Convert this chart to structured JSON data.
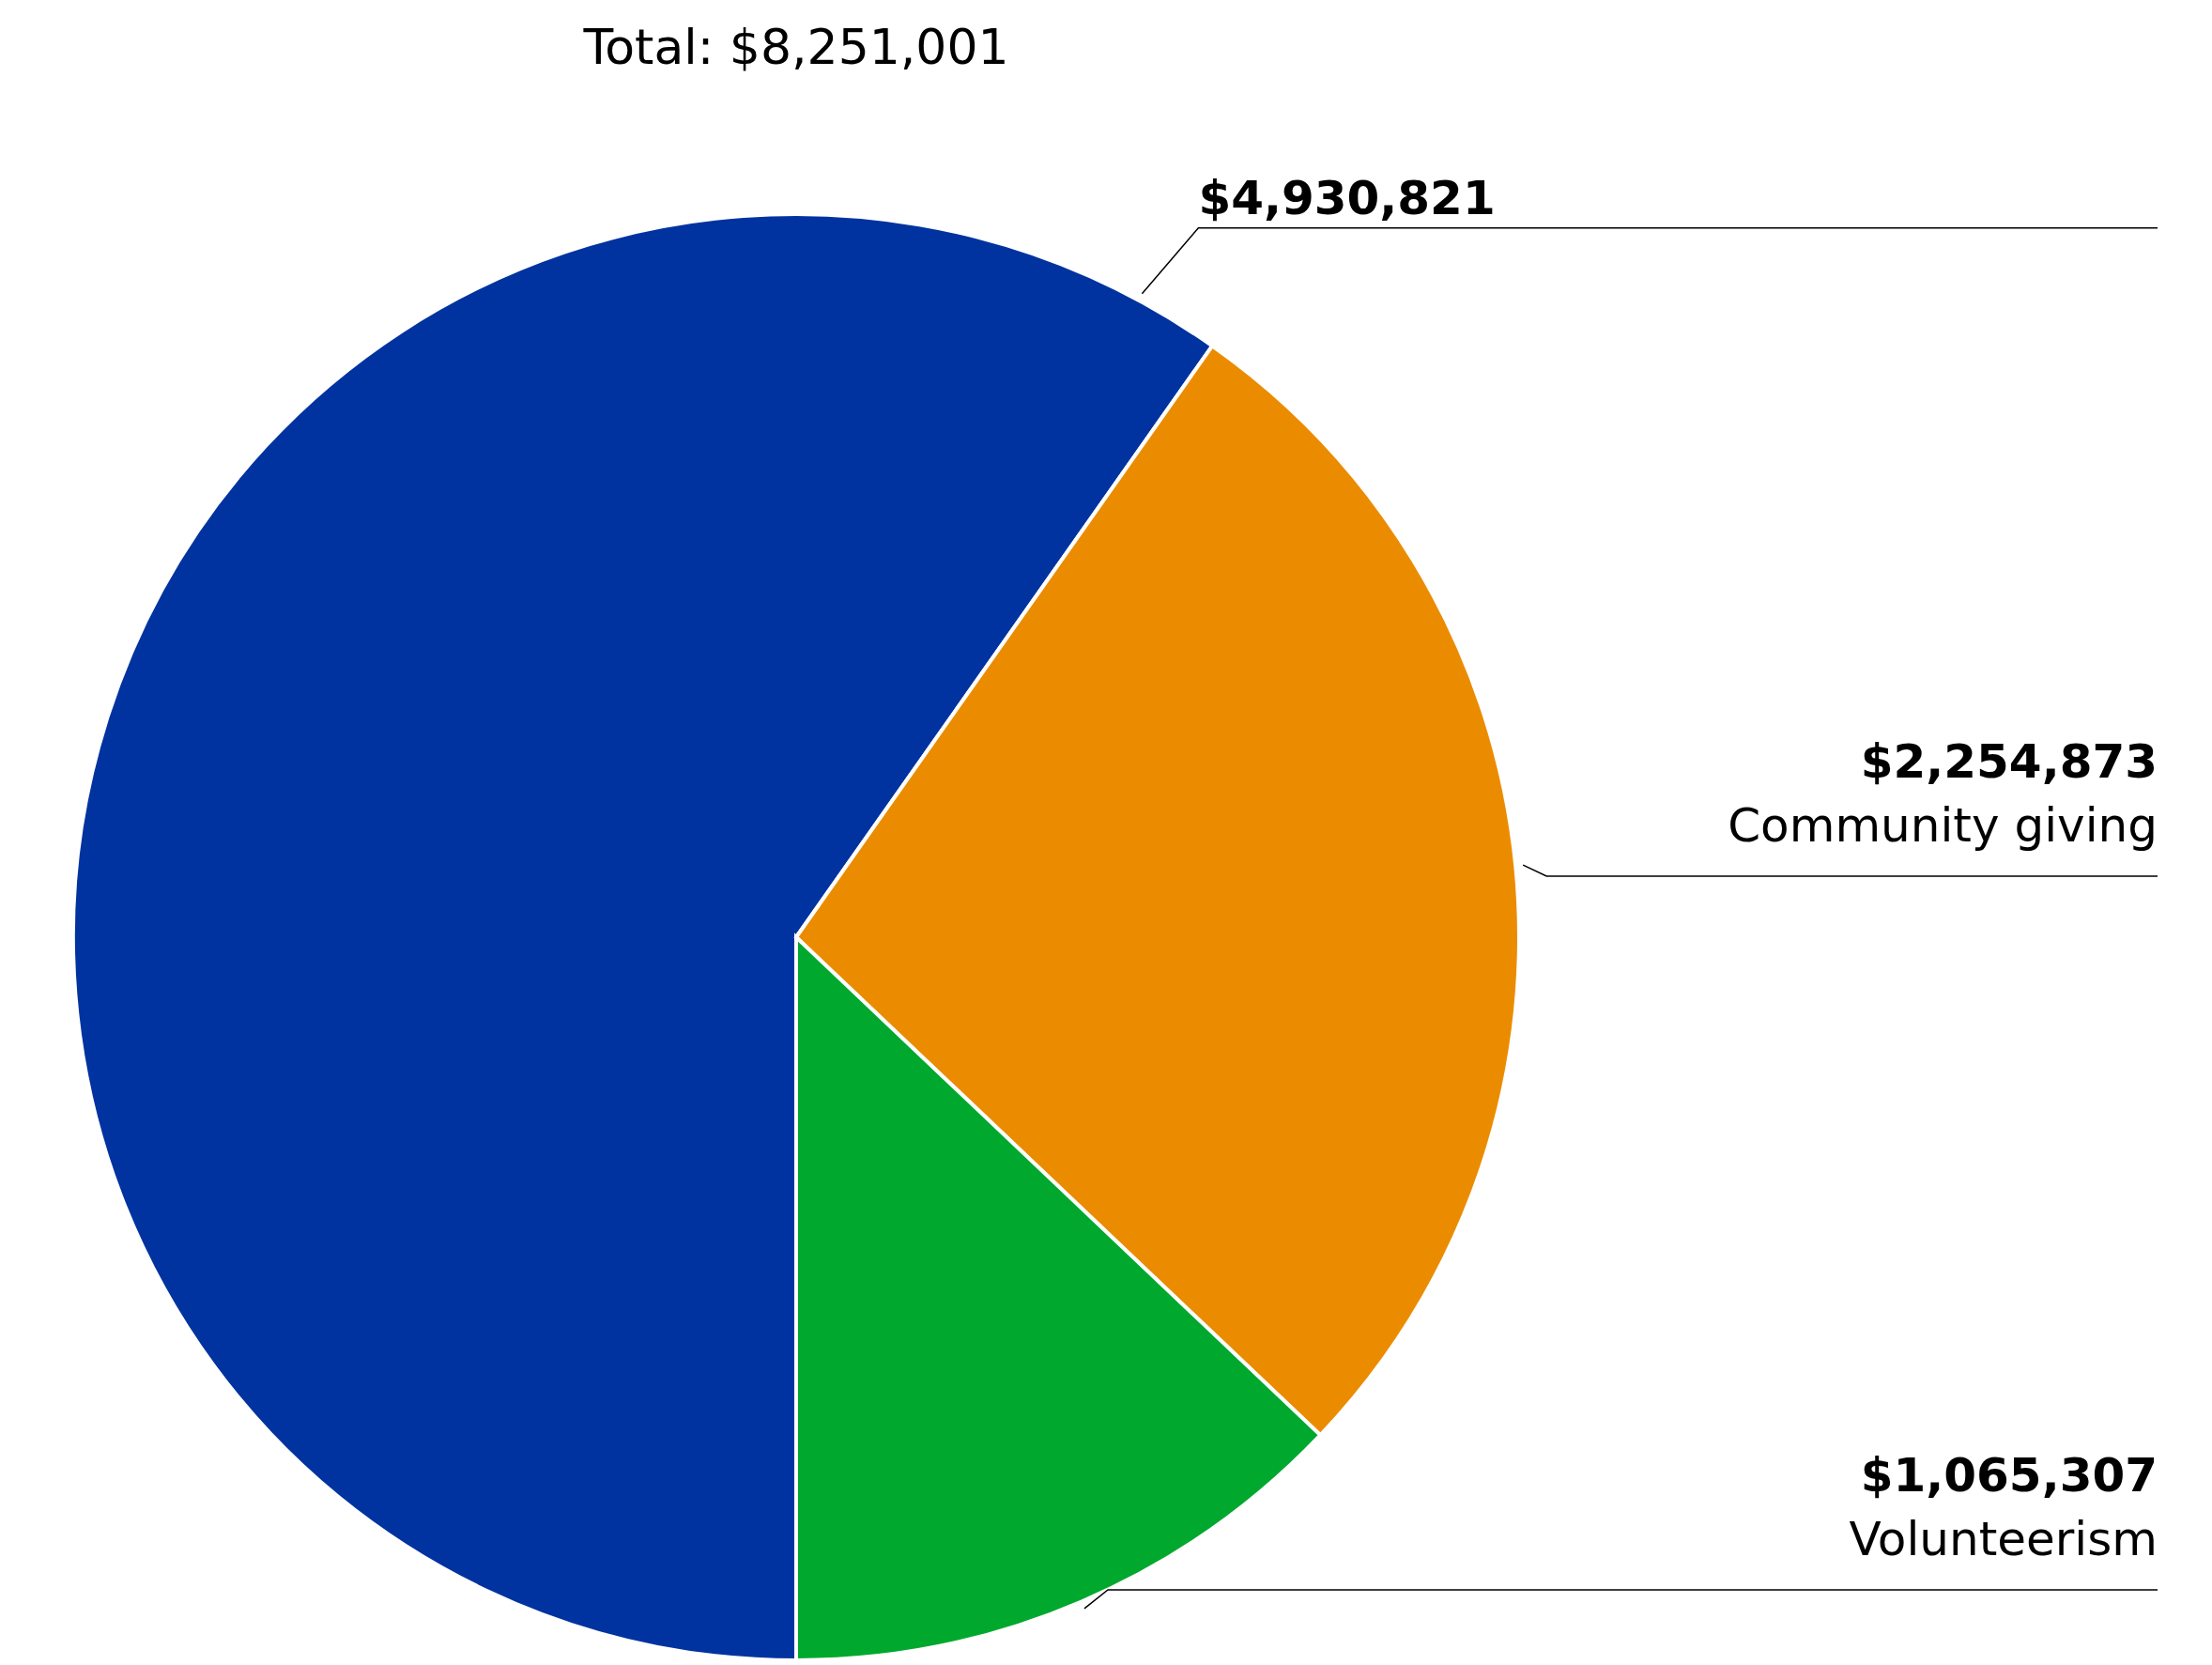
{
  "chart_data": {
    "type": "pie",
    "title": "Total: $8,251,001",
    "categories": [
      null,
      "Community giving",
      "Volunteerism"
    ],
    "values": [
      4930821,
      2254873,
      1065307
    ],
    "value_labels": [
      "$4,930,821",
      "$2,254,873",
      "$1,065,307"
    ],
    "colors": [
      "#0033a0",
      "#eb8c00",
      "#00a82d"
    ]
  }
}
